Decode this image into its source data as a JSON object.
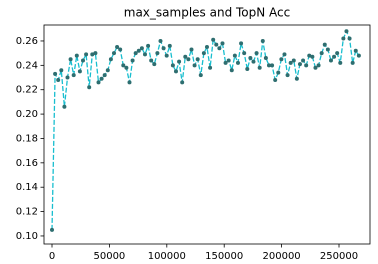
{
  "chart_data": {
    "type": "line",
    "title": "max_samples and TopN Acc",
    "x": [
      0,
      2700,
      5400,
      8100,
      10800,
      13500,
      16200,
      18900,
      21600,
      24300,
      27000,
      29700,
      32400,
      35100,
      37800,
      40500,
      43200,
      45900,
      48600,
      51300,
      54000,
      56700,
      59400,
      62100,
      64800,
      67500,
      70200,
      72900,
      75600,
      78300,
      81000,
      83700,
      86400,
      89100,
      91800,
      94500,
      97200,
      99900,
      102600,
      105300,
      108000,
      110700,
      113400,
      116100,
      118800,
      121500,
      124200,
      126900,
      129600,
      132300,
      135000,
      137700,
      140400,
      143100,
      145800,
      148500,
      151200,
      153900,
      156600,
      159300,
      162000,
      164700,
      167400,
      170100,
      172800,
      175500,
      178200,
      180900,
      183600,
      186300,
      189000,
      191700,
      194400,
      197100,
      199800,
      202500,
      205200,
      207900,
      210600,
      213300,
      216000,
      218700,
      221400,
      224100,
      226800,
      229500,
      232200,
      234900,
      237600,
      240300,
      243000,
      245700,
      248400,
      251100,
      253800,
      256500,
      259200,
      261900,
      264600,
      267300
    ],
    "values": [
      0.105,
      0.233,
      0.228,
      0.236,
      0.206,
      0.23,
      0.245,
      0.232,
      0.248,
      0.235,
      0.244,
      0.249,
      0.222,
      0.249,
      0.25,
      0.226,
      0.229,
      0.232,
      0.236,
      0.245,
      0.25,
      0.255,
      0.253,
      0.24,
      0.238,
      0.226,
      0.244,
      0.25,
      0.252,
      0.254,
      0.249,
      0.256,
      0.244,
      0.241,
      0.25,
      0.26,
      0.254,
      0.248,
      0.256,
      0.24,
      0.235,
      0.243,
      0.226,
      0.247,
      0.245,
      0.253,
      0.24,
      0.245,
      0.232,
      0.25,
      0.255,
      0.238,
      0.261,
      0.257,
      0.254,
      0.258,
      0.242,
      0.244,
      0.236,
      0.248,
      0.242,
      0.258,
      0.25,
      0.237,
      0.246,
      0.243,
      0.25,
      0.238,
      0.26,
      0.246,
      0.24,
      0.24,
      0.228,
      0.234,
      0.245,
      0.249,
      0.232,
      0.242,
      0.244,
      0.229,
      0.241,
      0.244,
      0.24,
      0.248,
      0.247,
      0.238,
      0.24,
      0.25,
      0.257,
      0.253,
      0.244,
      0.247,
      0.25,
      0.242,
      0.262,
      0.268,
      0.262,
      0.242,
      0.252,
      0.248
    ],
    "color": "#17becf",
    "marker_color": "#2e6e70",
    "linestyle": "dashed",
    "xlim": [
      -6970,
      277000
    ],
    "xticks": [
      0,
      50000,
      100000,
      150000,
      200000,
      250000
    ],
    "ylim": [
      0.0934,
      0.2731
    ],
    "yticks": [
      {
        "value": 0.1,
        "label": "0.10"
      },
      0.12,
      0.14,
      0.16,
      0.18,
      {
        "value": 0.2,
        "label": "0.20"
      },
      0.22,
      0.24,
      0.26
    ],
    "grid": false
  }
}
